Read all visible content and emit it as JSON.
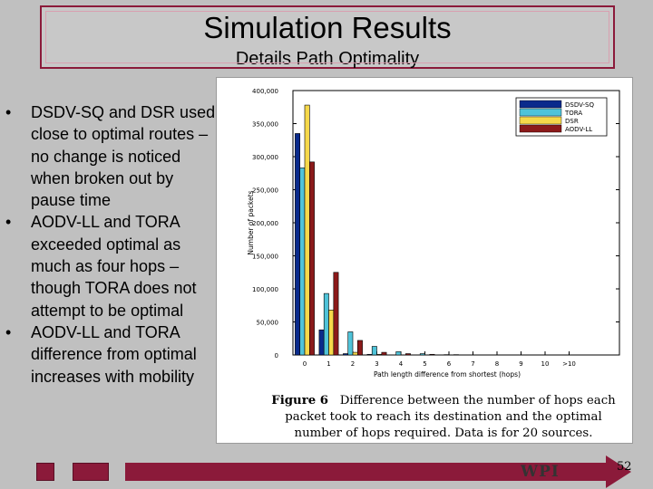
{
  "slide": {
    "title": "Simulation Results",
    "subtitle": "Details Path Optimality",
    "bullets": [
      "DSDV-SQ and DSR used close to optimal routes – no change is noticed when broken out by pause time",
      "AODV-LL and TORA exceeded optimal as much as four hops – though TORA does not attempt to be optimal",
      "AODV-LL and TORA difference from optimal increases with mobility"
    ],
    "bullet_char": "•",
    "footer_logo": "WPI",
    "page_number": "52",
    "colors": {
      "accent": "#8b1a3a",
      "background": "#c0c0c0"
    }
  },
  "figure": {
    "caption_label": "Figure 6",
    "caption_text": "Difference between the number of hops each packet took to reach its destination and the optimal number of hops required.  Data is for 20 sources."
  },
  "chart_data": {
    "type": "bar",
    "xlabel": "Path length difference from shortest (hops)",
    "ylabel": "Number of packets",
    "categories": [
      "0",
      "1",
      "2",
      "3",
      "4",
      "5",
      "6",
      "7",
      "8",
      "9",
      "10",
      ">10"
    ],
    "ylim": [
      0,
      400000
    ],
    "yticks": [
      "0",
      "50,000",
      "100,000",
      "150,000",
      "200,000",
      "250,000",
      "300,000",
      "350,000",
      "400,000"
    ],
    "legend_position": "top-right",
    "series": [
      {
        "name": "DSDV-SQ",
        "color": "#0a2a8c",
        "values": [
          335000,
          38000,
          2000,
          1000,
          0,
          0,
          0,
          0,
          0,
          0,
          0,
          0
        ]
      },
      {
        "name": "TORA",
        "color": "#4fc3d9",
        "values": [
          283000,
          93000,
          35000,
          13000,
          5000,
          2000,
          500,
          0,
          0,
          0,
          0,
          0
        ]
      },
      {
        "name": "DSR",
        "color": "#f5d84a",
        "values": [
          378000,
          68000,
          4000,
          1000,
          0,
          0,
          0,
          0,
          0,
          0,
          0,
          0
        ]
      },
      {
        "name": "AODV-LL",
        "color": "#8b1a1a",
        "values": [
          292000,
          125000,
          22000,
          4000,
          2000,
          1000,
          500,
          0,
          0,
          0,
          0,
          0
        ]
      }
    ]
  }
}
